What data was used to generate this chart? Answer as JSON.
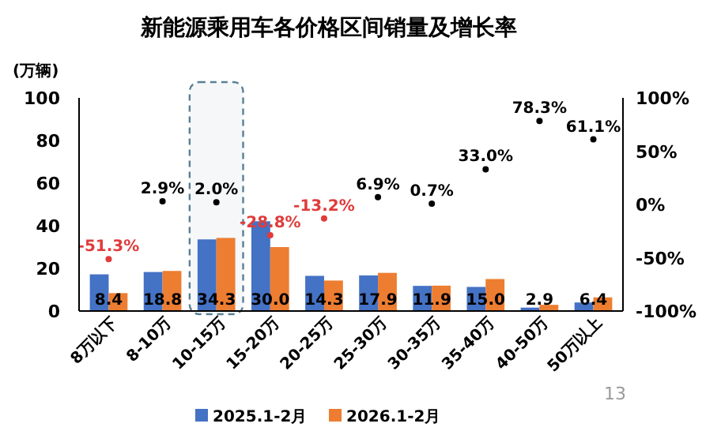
{
  "chart_data": {
    "type": "bar",
    "title": "新能源乘用车各价格区间销量及增长率",
    "ylabel": "(万辆)",
    "categories": [
      "8万以下",
      "8-10万",
      "10-15万",
      "15-20万",
      "20-25万",
      "25-30万",
      "30-35万",
      "35-40万",
      "40-50万",
      "50万以上"
    ],
    "series": [
      {
        "name": "2025.1-2月",
        "color": "#4472c4",
        "values": [
          17.2,
          18.3,
          33.6,
          42.1,
          16.5,
          16.7,
          11.8,
          11.3,
          1.6,
          4.0
        ]
      },
      {
        "name": "2026.1-2月",
        "color": "#ed7d31",
        "values": [
          8.4,
          18.8,
          34.3,
          30.0,
          14.3,
          17.9,
          11.9,
          15.0,
          2.9,
          6.4
        ],
        "value_labels": [
          "8.4",
          "18.8",
          "34.3",
          "30.0",
          "14.3",
          "17.9",
          "11.9",
          "15.0",
          "2.9",
          "6.4"
        ]
      },
      {
        "type": "scatter",
        "axis": "y2",
        "marker": "circle",
        "values": [
          -51.3,
          2.9,
          2.0,
          -28.8,
          -13.2,
          6.9,
          0.7,
          33.0,
          78.3,
          61.1
        ],
        "value_labels": [
          "-51.3%",
          "2.9%",
          "2.0%",
          "-28.8%",
          "-13.2%",
          "6.9%",
          "0.7%",
          "33.0%",
          "78.3%",
          "61.1%"
        ],
        "colors": [
          "#e03c3c",
          "#000000",
          "#000000",
          "#e03c3c",
          "#e03c3c",
          "#000000",
          "#000000",
          "#000000",
          "#000000",
          "#000000"
        ]
      }
    ],
    "ylim": [
      0,
      100
    ],
    "yticks": [
      0,
      20,
      40,
      60,
      80,
      100
    ],
    "y2lim": [
      -100,
      100
    ],
    "y2ticks": [
      {
        "value": -100,
        "label": "-100%"
      },
      {
        "value": -50,
        "label": "-50%"
      },
      {
        "value": 0,
        "label": "0%"
      },
      {
        "value": 50,
        "label": "50%"
      },
      {
        "value": 100,
        "label": "100%"
      }
    ],
    "bands": [
      {
        "axis": "x",
        "from": "10-15万",
        "to": "10-15万",
        "color": "#5b7f95"
      }
    ],
    "legend": "bottom",
    "grid": false,
    "annotations": [
      "13"
    ]
  }
}
